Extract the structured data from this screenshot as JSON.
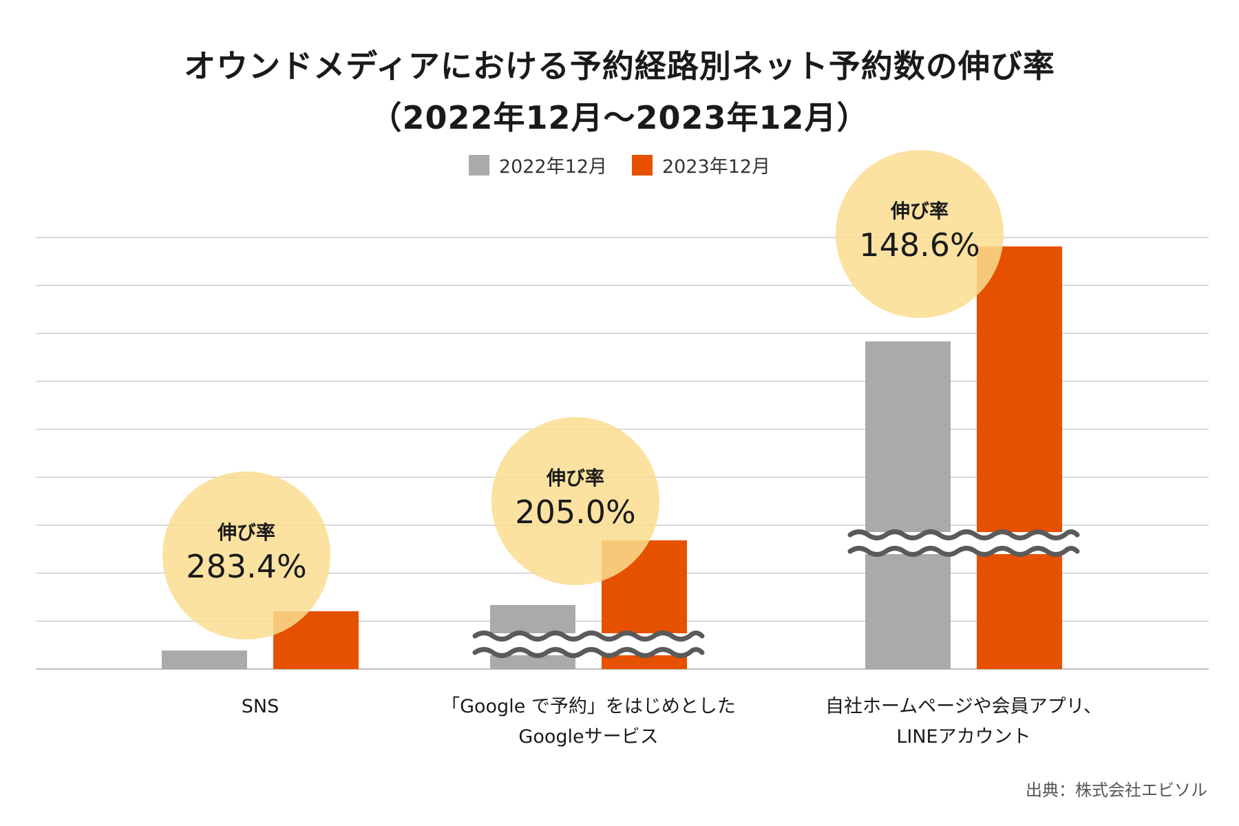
{
  "title_line1": "オウンドメディアにおける予約経路別ネット予約数の伸び率",
  "title_line2": "（2022年12月～2023年12月）",
  "source": "出典：株式会社エビソル",
  "chart_data": {
    "type": "bar",
    "categories": [
      [
        "SNS"
      ],
      [
        "「Google で予約」をはじめとした",
        "Googleサービス"
      ],
      [
        "自社ホームページや会員アプリ、",
        "LINEアカウント"
      ]
    ],
    "series": [
      {
        "name": "2022年12月",
        "color": "#aaaaaa",
        "values": [
          1,
          1,
          1
        ]
      },
      {
        "name": "2023年12月",
        "color": "#e65100",
        "values": [
          2.834,
          2.05,
          1.486
        ]
      }
    ],
    "growth_label": "伸び率",
    "growth_rates": [
      "283.4%",
      "205.0%",
      "148.6%"
    ],
    "axis_break": [
      false,
      true,
      true
    ],
    "legend_position": "top",
    "grid": true,
    "gridline_count": 10,
    "y_tick_labels": false,
    "growth_circle_color": "#fadd8f"
  }
}
